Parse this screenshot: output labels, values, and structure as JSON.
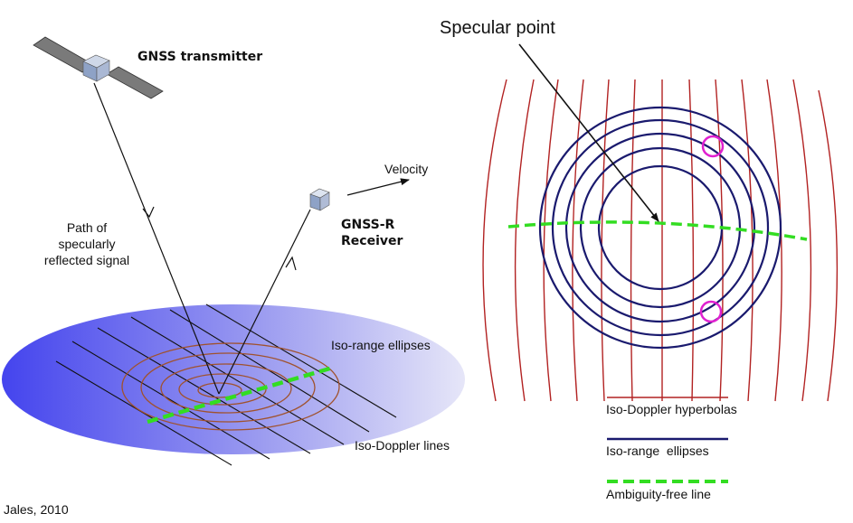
{
  "left_panel": {
    "transmitter_label": "GNSS transmitter",
    "receiver_label_line1": "GNSS-R",
    "receiver_label_line2": "Receiver",
    "velocity_label": "Velocity",
    "path_label_line1": "Path of",
    "path_label_line2": "specularly",
    "path_label_line3": "reflected signal",
    "iso_range_label": "Iso-range ellipses",
    "iso_doppler_label": "Iso-Doppler lines"
  },
  "right_panel": {
    "specular_point_label": "Specular point",
    "legend": [
      {
        "label": "Iso-Doppler hyperbolas",
        "color": "#b22222",
        "style": "solid"
      },
      {
        "label": "Iso-range  ellipses",
        "color": "#1a1a6e",
        "style": "solid"
      },
      {
        "label": "Ambiguity-free line",
        "color": "#33dd22",
        "style": "dashed"
      }
    ]
  },
  "colors": {
    "surface_blue": "#4a4af0",
    "ellipse_brown": "#a0522d",
    "doppler_red": "#b22222",
    "range_navy": "#1a1a6e",
    "ambiguity_green": "#33dd22",
    "ambiguity_marker": "#e020d0"
  },
  "citation": "Jales, 2010"
}
